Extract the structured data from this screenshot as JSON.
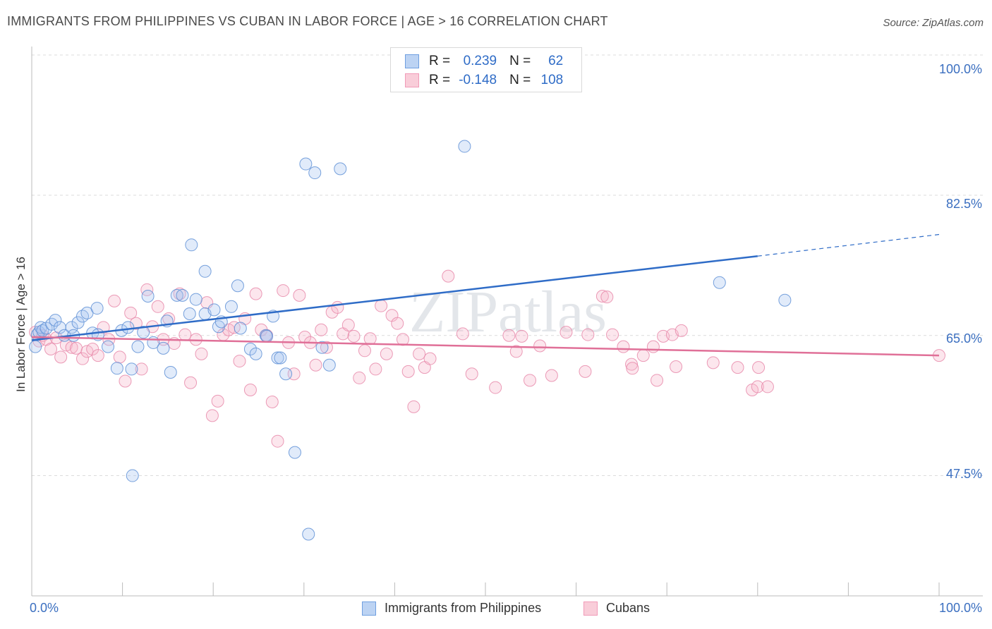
{
  "title": "IMMIGRANTS FROM PHILIPPINES VS CUBAN IN LABOR FORCE | AGE > 16 CORRELATION CHART",
  "source": "Source: ZipAtlas.com",
  "watermark": "ZIPatlas",
  "legend_stats": {
    "philippines": {
      "r_label": "R =",
      "r_value": "0.239",
      "n_label": "N =",
      "n_value": "62"
    },
    "cubans": {
      "r_label": "R =",
      "r_value": "-0.148",
      "n_label": "N =",
      "n_value": "108"
    }
  },
  "chart_data": {
    "type": "scatter",
    "title": "IMMIGRANTS FROM PHILIPPINES VS CUBAN IN LABOR FORCE | AGE > 16 CORRELATION CHART",
    "xlabel": "",
    "ylabel": "In Labor Force | Age > 16",
    "xlim": [
      0,
      100
    ],
    "ylim": [
      32.5,
      100
    ],
    "x_tick_labels": [
      "0.0%",
      "100.0%"
    ],
    "y_ticks": [
      47.5,
      65.0,
      82.5,
      100.0
    ],
    "y_tick_labels": [
      "47.5%",
      "65.0%",
      "82.5%",
      "100.0%"
    ],
    "grid": true,
    "legend_position": "top-center and bottom",
    "colors": {
      "philippines": "#6f9fe0",
      "cubans": "#f19bb8",
      "philippines_line": "#2f6cc7",
      "cubans_line": "#e07098"
    },
    "series": [
      {
        "name": "Immigrants from Philippines",
        "color": "#6f9fe0",
        "trend": {
          "x": [
            0,
            80
          ],
          "y": [
            64.4,
            74.9
          ],
          "dashed_to": [
            100,
            77.6
          ]
        },
        "points": [
          [
            0.4,
            63.6
          ],
          [
            0.6,
            65.1
          ],
          [
            0.8,
            65.4
          ],
          [
            1.0,
            66.0
          ],
          [
            1.2,
            65.6
          ],
          [
            1.6,
            65.9
          ],
          [
            2.2,
            66.4
          ],
          [
            2.6,
            66.9
          ],
          [
            3.1,
            66.0
          ],
          [
            3.6,
            65.0
          ],
          [
            4.4,
            66.0
          ],
          [
            4.6,
            65.0
          ],
          [
            5.1,
            66.6
          ],
          [
            5.6,
            67.4
          ],
          [
            6.1,
            67.8
          ],
          [
            6.7,
            65.3
          ],
          [
            7.2,
            68.4
          ],
          [
            8.4,
            63.6
          ],
          [
            9.9,
            65.6
          ],
          [
            9.4,
            60.9
          ],
          [
            11.0,
            60.8
          ],
          [
            11.7,
            63.6
          ],
          [
            12.3,
            65.4
          ],
          [
            12.8,
            69.9
          ],
          [
            13.4,
            64.1
          ],
          [
            14.5,
            63.4
          ],
          [
            14.9,
            66.8
          ],
          [
            15.3,
            60.4
          ],
          [
            16.0,
            70.0
          ],
          [
            16.6,
            70.0
          ],
          [
            17.4,
            67.7
          ],
          [
            17.6,
            76.3
          ],
          [
            18.1,
            69.5
          ],
          [
            19.1,
            73.0
          ],
          [
            19.1,
            67.7
          ],
          [
            20.1,
            68.2
          ],
          [
            20.6,
            66.1
          ],
          [
            20.9,
            66.7
          ],
          [
            22.0,
            68.6
          ],
          [
            22.7,
            71.2
          ],
          [
            23.0,
            65.9
          ],
          [
            24.1,
            63.3
          ],
          [
            24.7,
            62.7
          ],
          [
            25.8,
            65.0
          ],
          [
            25.9,
            64.9
          ],
          [
            26.6,
            67.4
          ],
          [
            27.1,
            62.2
          ],
          [
            27.4,
            62.2
          ],
          [
            28.0,
            60.2
          ],
          [
            29.0,
            50.4
          ],
          [
            30.2,
            86.4
          ],
          [
            30.5,
            40.2
          ],
          [
            31.2,
            85.3
          ],
          [
            32.0,
            63.5
          ],
          [
            32.8,
            61.3
          ],
          [
            34.0,
            85.8
          ],
          [
            47.7,
            88.6
          ],
          [
            75.8,
            71.6
          ],
          [
            83.0,
            69.4
          ],
          [
            7.3,
            65.1
          ],
          [
            11.1,
            47.5
          ],
          [
            10.6,
            66.0
          ]
        ]
      },
      {
        "name": "Cubans",
        "color": "#f19bb8",
        "trend": {
          "x": [
            0,
            100
          ],
          "y": [
            64.8,
            62.5
          ]
        },
        "points": [
          [
            0.4,
            65.4
          ],
          [
            0.8,
            64.3
          ],
          [
            1.2,
            65.0
          ],
          [
            1.6,
            64.5
          ],
          [
            2.1,
            63.3
          ],
          [
            2.7,
            64.7
          ],
          [
            3.2,
            62.3
          ],
          [
            3.8,
            63.8
          ],
          [
            4.4,
            63.5
          ],
          [
            4.9,
            63.4
          ],
          [
            5.6,
            62.1
          ],
          [
            6.1,
            63.0
          ],
          [
            6.7,
            63.3
          ],
          [
            7.3,
            62.5
          ],
          [
            7.9,
            66.0
          ],
          [
            8.5,
            64.5
          ],
          [
            9.1,
            69.3
          ],
          [
            9.7,
            62.3
          ],
          [
            10.3,
            59.3
          ],
          [
            10.9,
            67.8
          ],
          [
            11.5,
            66.5
          ],
          [
            12.1,
            60.8
          ],
          [
            12.7,
            70.7
          ],
          [
            13.3,
            66.1
          ],
          [
            13.9,
            68.6
          ],
          [
            14.5,
            64.5
          ],
          [
            15.1,
            67.1
          ],
          [
            15.7,
            64.0
          ],
          [
            16.3,
            70.2
          ],
          [
            16.9,
            65.1
          ],
          [
            17.5,
            59.1
          ],
          [
            18.1,
            64.5
          ],
          [
            18.7,
            62.7
          ],
          [
            19.3,
            69.1
          ],
          [
            19.9,
            55.0
          ],
          [
            20.5,
            56.8
          ],
          [
            21.1,
            65.1
          ],
          [
            21.7,
            65.7
          ],
          [
            22.3,
            66.0
          ],
          [
            22.9,
            61.8
          ],
          [
            23.5,
            67.1
          ],
          [
            24.1,
            58.2
          ],
          [
            24.7,
            70.2
          ],
          [
            25.3,
            65.7
          ],
          [
            25.9,
            65.0
          ],
          [
            26.5,
            56.7
          ],
          [
            27.1,
            51.8
          ],
          [
            27.7,
            70.6
          ],
          [
            28.3,
            64.1
          ],
          [
            28.9,
            60.2
          ],
          [
            29.5,
            70.0
          ],
          [
            30.1,
            64.8
          ],
          [
            30.7,
            64.1
          ],
          [
            31.3,
            61.3
          ],
          [
            31.9,
            65.7
          ],
          [
            32.5,
            63.5
          ],
          [
            33.1,
            67.9
          ],
          [
            33.7,
            68.5
          ],
          [
            34.3,
            65.2
          ],
          [
            34.9,
            66.3
          ],
          [
            35.5,
            64.9
          ],
          [
            36.1,
            59.7
          ],
          [
            36.7,
            63.1
          ],
          [
            37.3,
            64.6
          ],
          [
            37.9,
            60.8
          ],
          [
            38.5,
            68.7
          ],
          [
            39.1,
            62.7
          ],
          [
            39.7,
            67.5
          ],
          [
            40.3,
            66.5
          ],
          [
            40.9,
            64.5
          ],
          [
            41.5,
            60.5
          ],
          [
            42.1,
            56.1
          ],
          [
            42.7,
            62.7
          ],
          [
            43.3,
            61.0
          ],
          [
            43.9,
            62.1
          ],
          [
            45.9,
            72.4
          ],
          [
            47.5,
            65.2
          ],
          [
            48.5,
            60.2
          ],
          [
            51.1,
            58.5
          ],
          [
            52.6,
            65.0
          ],
          [
            53.4,
            63.0
          ],
          [
            54.0,
            64.9
          ],
          [
            54.9,
            59.4
          ],
          [
            56.0,
            63.7
          ],
          [
            57.3,
            60.0
          ],
          [
            58.9,
            65.4
          ],
          [
            61.0,
            60.5
          ],
          [
            61.3,
            65.1
          ],
          [
            62.9,
            69.9
          ],
          [
            63.4,
            69.8
          ],
          [
            64.0,
            65.1
          ],
          [
            65.2,
            63.6
          ],
          [
            66.1,
            61.4
          ],
          [
            66.2,
            60.9
          ],
          [
            67.4,
            62.5
          ],
          [
            68.5,
            63.6
          ],
          [
            68.9,
            59.4
          ],
          [
            69.6,
            64.9
          ],
          [
            70.6,
            65.1
          ],
          [
            71.0,
            61.1
          ],
          [
            71.6,
            65.6
          ],
          [
            75.1,
            61.6
          ],
          [
            77.8,
            61.0
          ],
          [
            79.4,
            58.2
          ],
          [
            80.0,
            58.6
          ],
          [
            80.1,
            61.0
          ],
          [
            81.1,
            58.6
          ],
          [
            100.0,
            62.5
          ]
        ]
      }
    ]
  },
  "bottom_legend": {
    "philippines_label": "Immigrants from Philippines",
    "cubans_label": "Cubans"
  }
}
